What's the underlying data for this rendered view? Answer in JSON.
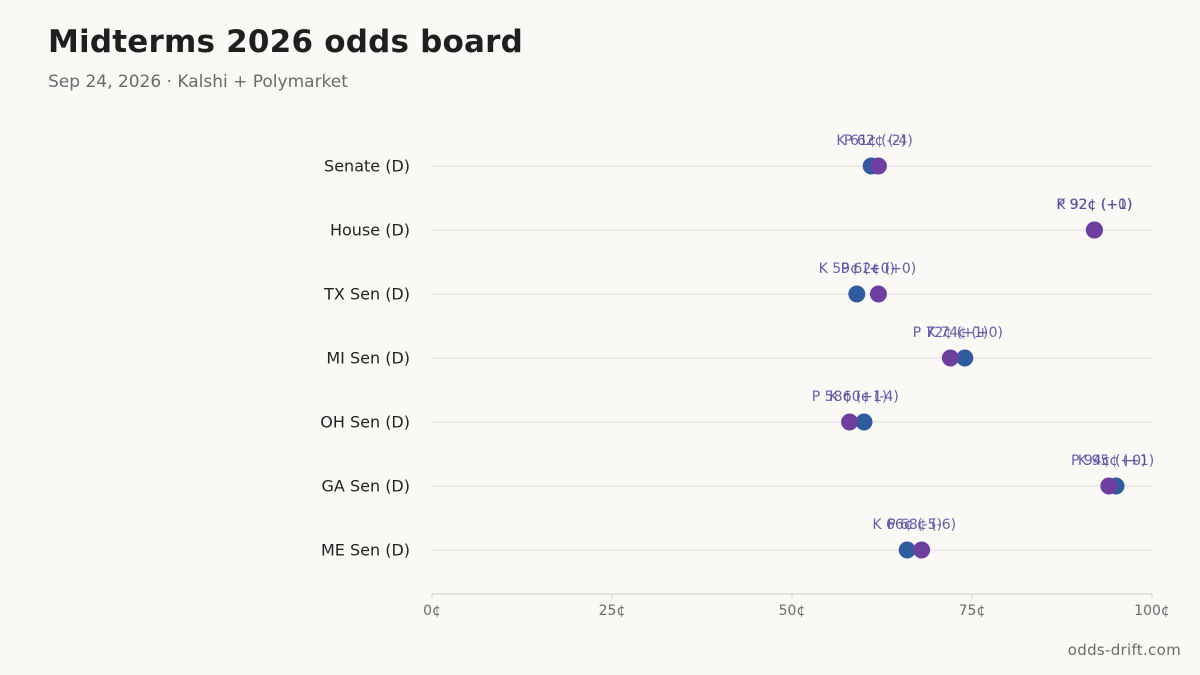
{
  "header": {
    "title": "Midterms 2026 odds board",
    "subtitle": "Sep 24, 2026 · Kalshi + Polymarket"
  },
  "footer": {
    "source": "odds-drift.com"
  },
  "colors": {
    "kalshi": "#2e5c9e",
    "polymarket": "#6e3fa0",
    "label": "#5b4aa3",
    "grid": "#e3e1dc",
    "axis": "#d8d6d1",
    "tick_text": "#6b6b6b",
    "category_text": "#222222"
  },
  "chart_data": {
    "type": "scatter",
    "subtype": "dot-plot",
    "categories": [
      "Senate (D)",
      "House (D)",
      "TX Sen (D)",
      "MI Sen (D)",
      "OH Sen (D)",
      "GA Sen (D)",
      "ME Sen (D)"
    ],
    "xlim": [
      0,
      100
    ],
    "xticks": [
      0,
      25,
      50,
      75,
      100
    ],
    "xtick_labels": [
      "0¢",
      "25¢",
      "50¢",
      "75¢",
      "100¢"
    ],
    "grid": true,
    "series": [
      {
        "name": "K",
        "color": "#2e5c9e",
        "values": [
          61,
          92,
          59,
          74,
          60,
          95,
          66
        ],
        "changes": [
          "-2",
          "+1",
          "+0",
          "+0",
          "-4",
          "+1",
          "-5"
        ],
        "labels": [
          "K 61¢ (-2)",
          "K 92¢ (+1)",
          "K 59¢ (+0)",
          "K 74¢ (+0)",
          "K 60¢ (-4)",
          "K 95¢ (+1)",
          "K 66¢ (-5)"
        ]
      },
      {
        "name": "P",
        "color": "#6e3fa0",
        "values": [
          62,
          92,
          62,
          72,
          58,
          94,
          68
        ],
        "changes": [
          "-4",
          "+0",
          "+0",
          "+1",
          "+1",
          "+0",
          "-6"
        ],
        "labels": [
          "P 62¢ (-4)",
          "P 92¢ (+0)",
          "P 62¢ (+0)",
          "P 72¢ (+1)",
          "P 58¢ (+1)",
          "P 94¢ (+0)",
          "P 68¢ (-6)"
        ]
      }
    ]
  }
}
